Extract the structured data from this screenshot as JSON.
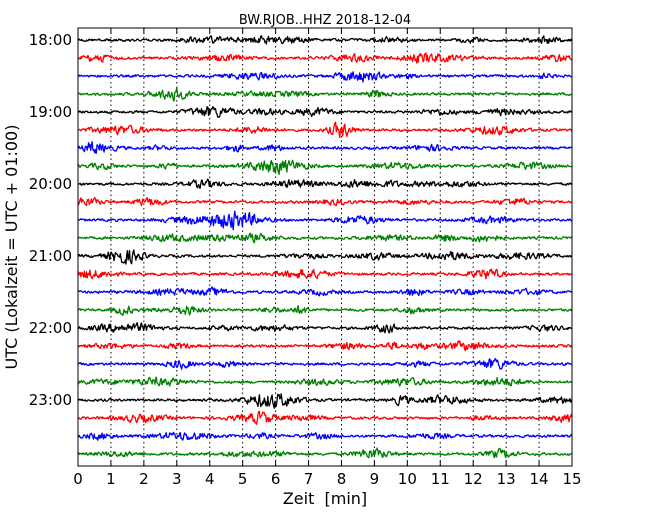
{
  "chart_data": {
    "type": "line",
    "title": "BW.RJOB..HHZ 2018-12-04",
    "xlabel": "Zeit  [min]",
    "ylabel": "UTC (Lokalzeit = UTC + 01:00)",
    "xlim": [
      0,
      15
    ],
    "x_ticks": [
      0,
      1,
      2,
      3,
      4,
      5,
      6,
      7,
      8,
      9,
      10,
      11,
      12,
      13,
      14,
      15
    ],
    "y_tick_labels": [
      "18:00",
      "19:00",
      "20:00",
      "21:00",
      "22:00",
      "23:00"
    ],
    "grid": "vertical dotted",
    "trace_colors": [
      "#000000",
      "#ff0000",
      "#0000ff",
      "#008000"
    ],
    "series": [
      {
        "start": "18:00",
        "color": "#000000"
      },
      {
        "start": "18:15",
        "color": "#ff0000"
      },
      {
        "start": "18:30",
        "color": "#0000ff"
      },
      {
        "start": "18:45",
        "color": "#008000"
      },
      {
        "start": "19:00",
        "color": "#000000"
      },
      {
        "start": "19:15",
        "color": "#ff0000"
      },
      {
        "start": "19:30",
        "color": "#0000ff"
      },
      {
        "start": "19:45",
        "color": "#008000"
      },
      {
        "start": "20:00",
        "color": "#000000"
      },
      {
        "start": "20:15",
        "color": "#ff0000"
      },
      {
        "start": "20:30",
        "color": "#0000ff"
      },
      {
        "start": "20:45",
        "color": "#008000"
      },
      {
        "start": "21:00",
        "color": "#000000"
      },
      {
        "start": "21:15",
        "color": "#ff0000"
      },
      {
        "start": "21:30",
        "color": "#0000ff"
      },
      {
        "start": "21:45",
        "color": "#008000"
      },
      {
        "start": "22:00",
        "color": "#000000"
      },
      {
        "start": "22:15",
        "color": "#ff0000"
      },
      {
        "start": "22:30",
        "color": "#0000ff"
      },
      {
        "start": "22:45",
        "color": "#008000"
      },
      {
        "start": "23:00",
        "color": "#000000"
      },
      {
        "start": "23:15",
        "color": "#ff0000"
      },
      {
        "start": "23:30",
        "color": "#0000ff"
      },
      {
        "start": "23:45",
        "color": "#008000"
      }
    ]
  }
}
